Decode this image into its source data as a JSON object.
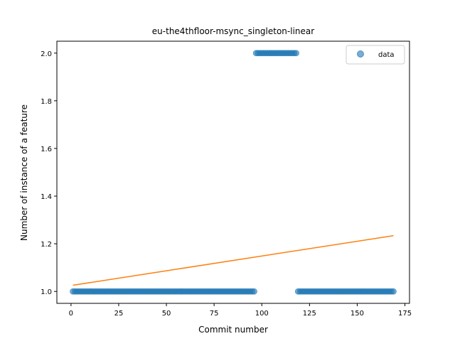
{
  "chart_data": {
    "type": "scatter",
    "title": "eu-the4thfloor-msync_singleton-linear",
    "xlabel": "Commit number",
    "ylabel": "Number of instance of a feature",
    "xlim": [
      -7.4,
      177.4
    ],
    "ylim": [
      0.95,
      2.05
    ],
    "xticks": [
      0,
      25,
      50,
      75,
      100,
      125,
      150,
      175
    ],
    "yticks": [
      1.0,
      1.2,
      1.4,
      1.6,
      1.8,
      2.0
    ],
    "ytick_labels": [
      "1.0",
      "1.2",
      "1.4",
      "1.6",
      "1.8",
      "2.0"
    ],
    "legend": {
      "placement": "top-right",
      "entries": [
        "data"
      ]
    },
    "colors": {
      "data": "#1f77b4",
      "fit": "#ff7f0e"
    },
    "grid": false,
    "series": [
      {
        "name": "data",
        "kind": "scatter",
        "segments": [
          {
            "x_start": 1,
            "x_end": 96,
            "y": 1.0
          },
          {
            "x_start": 97,
            "x_end": 118,
            "y": 2.0
          },
          {
            "x_start": 119,
            "x_end": 169,
            "y": 1.0
          }
        ]
      },
      {
        "kind": "line",
        "x": [
          1,
          169
        ],
        "y": [
          1.026,
          1.234
        ]
      }
    ]
  }
}
